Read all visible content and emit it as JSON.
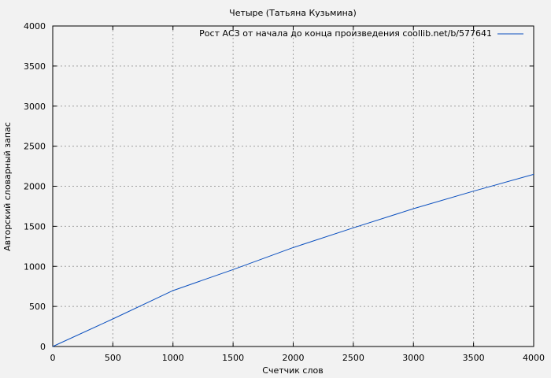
{
  "chart_data": {
    "type": "line",
    "title": "Четыре (Татьяна Кузьмина)",
    "xlabel": "Счетчик слов",
    "ylabel": "Авторский словарный запас",
    "xlim": [
      0,
      4000
    ],
    "ylim": [
      0,
      4000
    ],
    "xticks": [
      0,
      500,
      1000,
      1500,
      2000,
      2500,
      3000,
      3500,
      4000
    ],
    "yticks": [
      0,
      500,
      1000,
      1500,
      2000,
      2500,
      3000,
      3500,
      4000
    ],
    "grid": true,
    "legend_position": "top-right",
    "series": [
      {
        "name": "Рост АСЗ от начала до конца произведения coollib.net/b/577641",
        "color": "#0a4fbf",
        "x": [
          0,
          500,
          1000,
          1500,
          2000,
          2500,
          3000,
          3500,
          4000
        ],
        "y": [
          0,
          344,
          698,
          960,
          1235,
          1481,
          1720,
          1939,
          2149
        ]
      }
    ]
  }
}
